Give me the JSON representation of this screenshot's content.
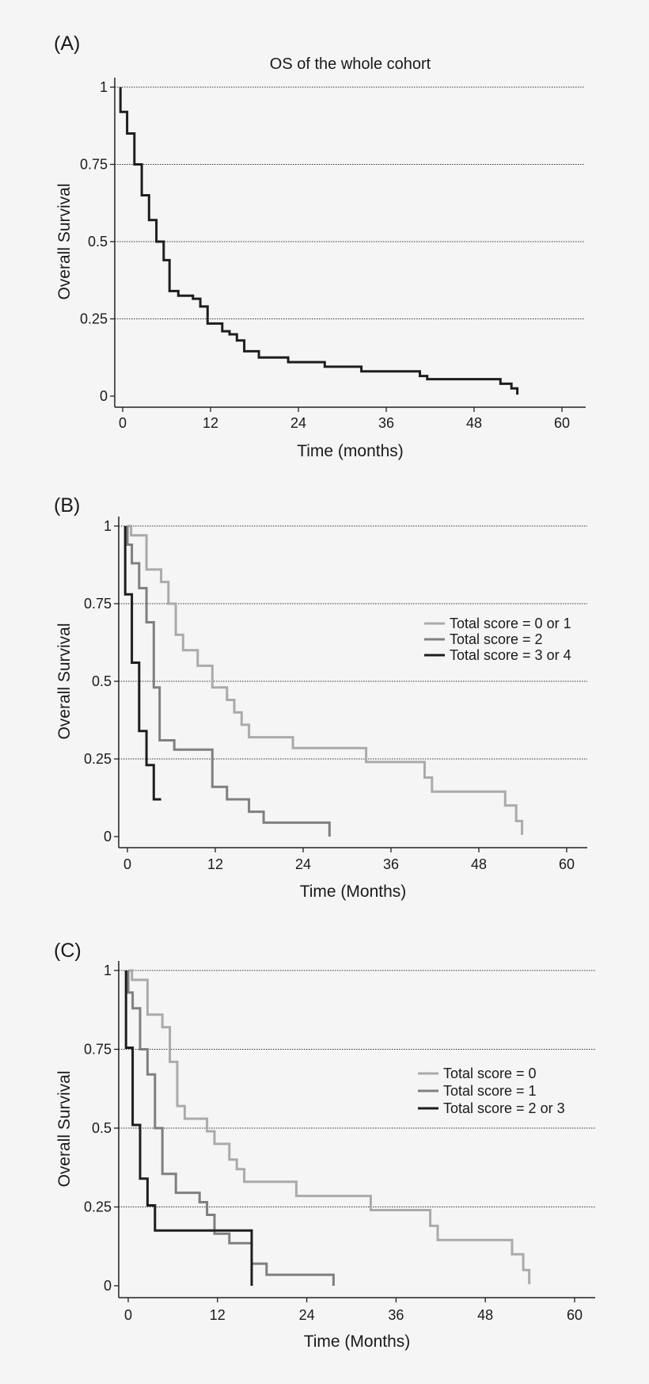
{
  "chart_data": [
    {
      "type": "line",
      "step": true,
      "panel": "(A)",
      "title": "OS of the whole cohort",
      "xlabel": "Time (months)",
      "ylabel": "Overall Survival",
      "xlim": [
        0,
        60
      ],
      "ylim": [
        0,
        1
      ],
      "xticks": [
        0,
        12,
        24,
        36,
        48,
        60
      ],
      "yticks": [
        0,
        0.25,
        0.5,
        0.75,
        1
      ],
      "ytick_labels": [
        "0",
        "0.25",
        "0.5",
        "0.75",
        "1"
      ],
      "grid": "horizontal dotted",
      "legend": null,
      "series": [
        {
          "color": "#1e1e1e",
          "points": [
            [
              -0.3,
              1.0
            ],
            [
              -0.3,
              0.92
            ],
            [
              0.6,
              0.92
            ],
            [
              0.6,
              0.85
            ],
            [
              1.6,
              0.85
            ],
            [
              1.6,
              0.75
            ],
            [
              2.6,
              0.75
            ],
            [
              2.6,
              0.65
            ],
            [
              3.6,
              0.65
            ],
            [
              3.6,
              0.57
            ],
            [
              4.6,
              0.57
            ],
            [
              4.6,
              0.5
            ],
            [
              5.6,
              0.5
            ],
            [
              5.6,
              0.44
            ],
            [
              6.4,
              0.44
            ],
            [
              6.4,
              0.34
            ],
            [
              7.6,
              0.34
            ],
            [
              7.6,
              0.325
            ],
            [
              9.6,
              0.325
            ],
            [
              9.6,
              0.315
            ],
            [
              10.6,
              0.315
            ],
            [
              10.6,
              0.29
            ],
            [
              11.6,
              0.29
            ],
            [
              11.6,
              0.235
            ],
            [
              13.6,
              0.235
            ],
            [
              13.6,
              0.21
            ],
            [
              14.6,
              0.21
            ],
            [
              14.6,
              0.2
            ],
            [
              15.6,
              0.2
            ],
            [
              15.6,
              0.18
            ],
            [
              16.6,
              0.18
            ],
            [
              16.6,
              0.145
            ],
            [
              18.6,
              0.145
            ],
            [
              18.6,
              0.125
            ],
            [
              22.6,
              0.125
            ],
            [
              22.6,
              0.11
            ],
            [
              27.6,
              0.11
            ],
            [
              27.6,
              0.095
            ],
            [
              32.6,
              0.095
            ],
            [
              32.6,
              0.08
            ],
            [
              40.6,
              0.08
            ],
            [
              40.6,
              0.065
            ],
            [
              41.6,
              0.065
            ],
            [
              41.6,
              0.055
            ],
            [
              51.6,
              0.055
            ],
            [
              51.6,
              0.04
            ],
            [
              53.1,
              0.04
            ],
            [
              53.1,
              0.025
            ],
            [
              53.9,
              0.025
            ],
            [
              53.9,
              0.005
            ]
          ]
        }
      ]
    },
    {
      "type": "line",
      "step": true,
      "panel": "(B)",
      "title": "",
      "xlabel": "Time (Months)",
      "ylabel": "Overall Survival",
      "xlim": [
        0,
        60
      ],
      "ylim": [
        0,
        1
      ],
      "xticks": [
        0,
        12,
        24,
        36,
        48,
        60
      ],
      "yticks": [
        0,
        0.25,
        0.5,
        0.75,
        1
      ],
      "ytick_labels": [
        "0",
        "0.25",
        "0.5",
        "0.75",
        "1"
      ],
      "grid": "horizontal dotted",
      "legend": "right",
      "series": [
        {
          "name": "Total score = 0 or 1",
          "color": "#aaaaaa",
          "points": [
            [
              0,
              1.0
            ],
            [
              0,
              1.0
            ],
            [
              0.5,
              1.0
            ],
            [
              0.5,
              0.97
            ],
            [
              2.6,
              0.97
            ],
            [
              2.6,
              0.86
            ],
            [
              4.6,
              0.86
            ],
            [
              4.6,
              0.82
            ],
            [
              5.6,
              0.82
            ],
            [
              5.6,
              0.75
            ],
            [
              6.6,
              0.75
            ],
            [
              6.6,
              0.65
            ],
            [
              7.6,
              0.65
            ],
            [
              7.6,
              0.6
            ],
            [
              9.6,
              0.6
            ],
            [
              9.6,
              0.55
            ],
            [
              11.6,
              0.55
            ],
            [
              11.6,
              0.48
            ],
            [
              13.6,
              0.48
            ],
            [
              13.6,
              0.44
            ],
            [
              14.6,
              0.44
            ],
            [
              14.6,
              0.4
            ],
            [
              15.6,
              0.4
            ],
            [
              15.6,
              0.36
            ],
            [
              16.6,
              0.36
            ],
            [
              16.6,
              0.32
            ],
            [
              22.6,
              0.32
            ],
            [
              22.6,
              0.285
            ],
            [
              32.6,
              0.285
            ],
            [
              32.6,
              0.24
            ],
            [
              40.6,
              0.24
            ],
            [
              40.6,
              0.19
            ],
            [
              41.6,
              0.19
            ],
            [
              41.6,
              0.145
            ],
            [
              51.6,
              0.145
            ],
            [
              51.6,
              0.1
            ],
            [
              53.1,
              0.1
            ],
            [
              53.1,
              0.05
            ],
            [
              53.9,
              0.05
            ],
            [
              53.9,
              0.005
            ]
          ]
        },
        {
          "name": "Total score = 2",
          "color": "#7f7f7f",
          "points": [
            [
              0,
              1.0
            ],
            [
              0,
              0.94
            ],
            [
              0.6,
              0.94
            ],
            [
              0.6,
              0.88
            ],
            [
              1.6,
              0.88
            ],
            [
              1.6,
              0.8
            ],
            [
              2.6,
              0.8
            ],
            [
              2.6,
              0.69
            ],
            [
              3.6,
              0.69
            ],
            [
              3.6,
              0.48
            ],
            [
              4.4,
              0.48
            ],
            [
              4.4,
              0.31
            ],
            [
              6.4,
              0.31
            ],
            [
              6.4,
              0.28
            ],
            [
              11.6,
              0.28
            ],
            [
              11.6,
              0.16
            ],
            [
              13.6,
              0.16
            ],
            [
              13.6,
              0.12
            ],
            [
              16.6,
              0.12
            ],
            [
              16.6,
              0.08
            ],
            [
              18.6,
              0.08
            ],
            [
              18.6,
              0.045
            ],
            [
              27.6,
              0.045
            ],
            [
              27.6,
              0.0
            ]
          ]
        },
        {
          "name": "Total score = 3 or 4",
          "color": "#1e1e1e",
          "points": [
            [
              -0.3,
              1.0
            ],
            [
              -0.3,
              0.78
            ],
            [
              0.6,
              0.78
            ],
            [
              0.6,
              0.56
            ],
            [
              1.6,
              0.56
            ],
            [
              1.6,
              0.34
            ],
            [
              2.6,
              0.34
            ],
            [
              2.6,
              0.23
            ],
            [
              3.6,
              0.23
            ],
            [
              3.6,
              0.12
            ],
            [
              4.6,
              0.12
            ]
          ]
        }
      ]
    },
    {
      "type": "line",
      "step": true,
      "panel": "(C)",
      "title": "",
      "xlabel": "Time (Months)",
      "ylabel": "Overall Survival",
      "xlim": [
        0,
        60
      ],
      "ylim": [
        0,
        1
      ],
      "xticks": [
        0,
        12,
        24,
        36,
        48,
        60
      ],
      "yticks": [
        0,
        0.25,
        0.5,
        0.75,
        1
      ],
      "ytick_labels": [
        "0",
        "0.25",
        "0.5",
        "0.75",
        "1"
      ],
      "grid": "horizontal dotted",
      "legend": "right",
      "series": [
        {
          "name": "Total score = 0",
          "color": "#aaaaaa",
          "points": [
            [
              0,
              1.0
            ],
            [
              0,
              1.0
            ],
            [
              0.5,
              1.0
            ],
            [
              0.5,
              0.97
            ],
            [
              2.6,
              0.97
            ],
            [
              2.6,
              0.86
            ],
            [
              4.6,
              0.86
            ],
            [
              4.6,
              0.82
            ],
            [
              5.6,
              0.82
            ],
            [
              5.6,
              0.71
            ],
            [
              6.6,
              0.71
            ],
            [
              6.6,
              0.57
            ],
            [
              7.6,
              0.57
            ],
            [
              7.6,
              0.53
            ],
            [
              10.6,
              0.53
            ],
            [
              10.6,
              0.49
            ],
            [
              11.6,
              0.49
            ],
            [
              11.6,
              0.45
            ],
            [
              13.6,
              0.45
            ],
            [
              13.6,
              0.4
            ],
            [
              14.6,
              0.4
            ],
            [
              14.6,
              0.37
            ],
            [
              15.6,
              0.37
            ],
            [
              15.6,
              0.33
            ],
            [
              22.6,
              0.33
            ],
            [
              22.6,
              0.285
            ],
            [
              32.6,
              0.285
            ],
            [
              32.6,
              0.24
            ],
            [
              40.6,
              0.24
            ],
            [
              40.6,
              0.19
            ],
            [
              41.6,
              0.19
            ],
            [
              41.6,
              0.145
            ],
            [
              51.6,
              0.145
            ],
            [
              51.6,
              0.1
            ],
            [
              53.1,
              0.1
            ],
            [
              53.1,
              0.05
            ],
            [
              53.9,
              0.05
            ],
            [
              53.9,
              0.005
            ]
          ]
        },
        {
          "name": "Total score = 1",
          "color": "#7f7f7f",
          "points": [
            [
              0,
              1.0
            ],
            [
              0,
              0.93
            ],
            [
              0.6,
              0.93
            ],
            [
              0.6,
              0.88
            ],
            [
              1.6,
              0.88
            ],
            [
              1.6,
              0.75
            ],
            [
              2.6,
              0.75
            ],
            [
              2.6,
              0.67
            ],
            [
              3.6,
              0.67
            ],
            [
              3.6,
              0.5
            ],
            [
              4.6,
              0.5
            ],
            [
              4.6,
              0.355
            ],
            [
              6.4,
              0.355
            ],
            [
              6.4,
              0.295
            ],
            [
              9.6,
              0.295
            ],
            [
              9.6,
              0.265
            ],
            [
              10.6,
              0.265
            ],
            [
              10.6,
              0.225
            ],
            [
              11.6,
              0.225
            ],
            [
              11.6,
              0.165
            ],
            [
              13.6,
              0.165
            ],
            [
              13.6,
              0.135
            ],
            [
              16.6,
              0.135
            ],
            [
              16.6,
              0.07
            ],
            [
              18.6,
              0.07
            ],
            [
              18.6,
              0.035
            ],
            [
              27.6,
              0.035
            ],
            [
              27.6,
              0.0
            ]
          ]
        },
        {
          "name": "Total score = 2 or 3",
          "color": "#1e1e1e",
          "points": [
            [
              -0.3,
              1.0
            ],
            [
              -0.3,
              0.755
            ],
            [
              0.6,
              0.755
            ],
            [
              0.6,
              0.51
            ],
            [
              1.6,
              0.51
            ],
            [
              1.6,
              0.34
            ],
            [
              2.6,
              0.34
            ],
            [
              2.6,
              0.255
            ],
            [
              3.6,
              0.255
            ],
            [
              3.6,
              0.175
            ],
            [
              16.6,
              0.175
            ],
            [
              16.6,
              0.0
            ]
          ]
        }
      ]
    }
  ]
}
